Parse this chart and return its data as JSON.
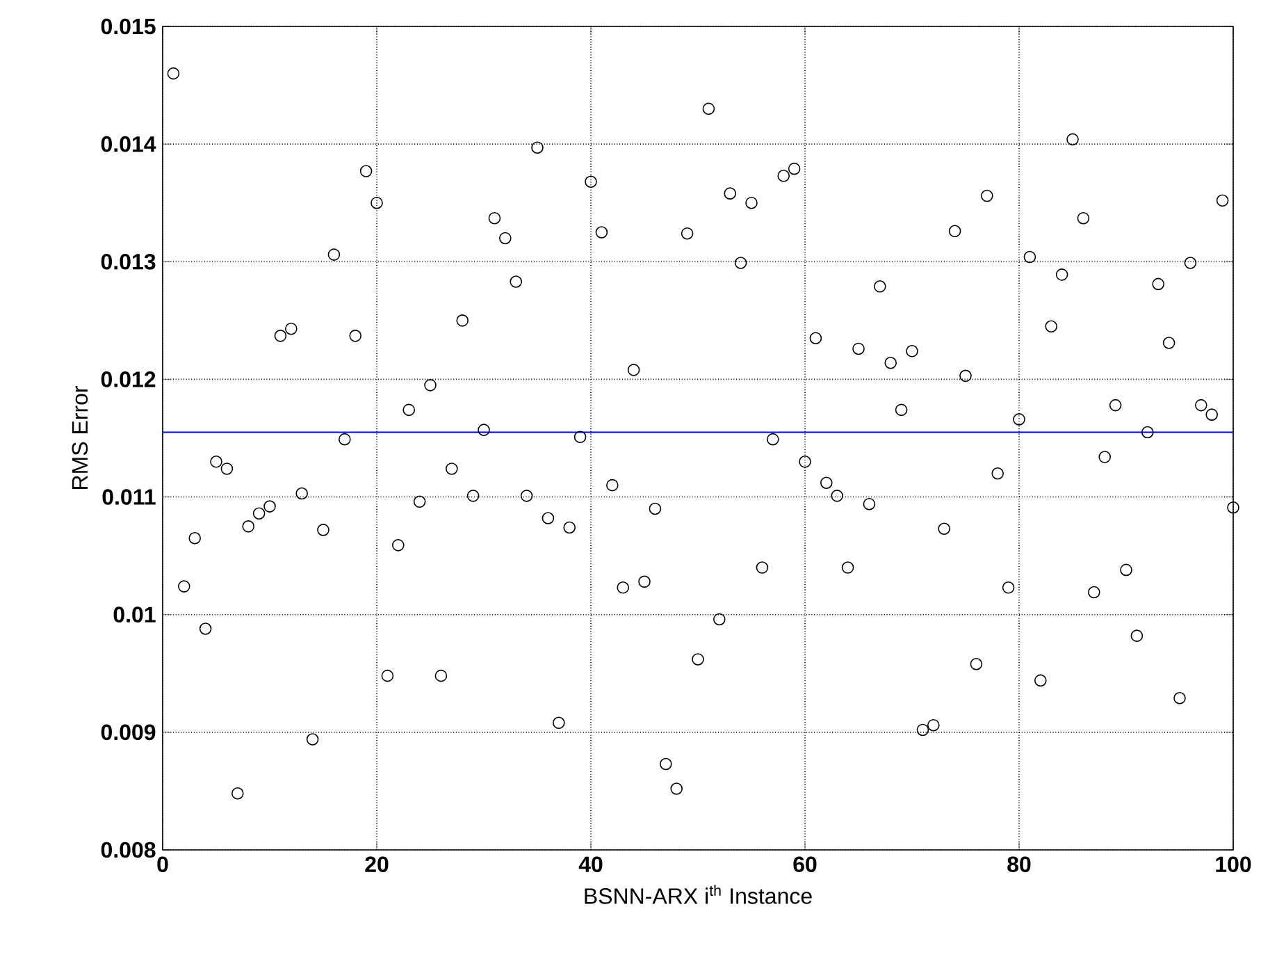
{
  "chart_data": {
    "type": "scatter",
    "xlabel": "BSNN-ARX i$^{th}$ Instance",
    "ylabel": "RMS Error",
    "xlim": [
      0,
      100
    ],
    "xticks": [
      0,
      20,
      40,
      60,
      80,
      100
    ],
    "ylim": [
      0.008,
      0.015
    ],
    "yticks": [
      0.008,
      0.009,
      0.01,
      0.011,
      0.012,
      0.013,
      0.014,
      0.015
    ],
    "grid": true,
    "marker": "circle",
    "x": [
      1,
      2,
      3,
      4,
      5,
      6,
      7,
      8,
      9,
      10,
      11,
      12,
      13,
      14,
      15,
      16,
      17,
      18,
      19,
      20,
      21,
      22,
      23,
      24,
      25,
      26,
      27,
      28,
      29,
      30,
      31,
      32,
      33,
      34,
      35,
      36,
      37,
      38,
      39,
      40,
      41,
      42,
      43,
      44,
      45,
      46,
      47,
      48,
      49,
      50,
      51,
      52,
      53,
      54,
      55,
      56,
      57,
      58,
      59,
      60,
      61,
      62,
      63,
      64,
      65,
      66,
      67,
      68,
      69,
      70,
      71,
      72,
      73,
      74,
      75,
      76,
      77,
      78,
      79,
      80,
      81,
      82,
      83,
      84,
      85,
      86,
      87,
      88,
      89,
      90,
      91,
      92,
      93,
      94,
      95,
      96,
      97,
      98,
      99,
      100
    ],
    "series": [
      {
        "color": "#000000",
        "values": [
          0.0146,
          0.01024,
          0.01065,
          0.00988,
          0.0113,
          0.01124,
          0.00848,
          0.01075,
          0.01086,
          0.01092,
          0.01237,
          0.01243,
          0.01103,
          0.00894,
          0.01072,
          0.01306,
          0.01149,
          0.01237,
          0.01377,
          0.0135,
          0.00948,
          0.01059,
          0.01174,
          0.01096,
          0.01195,
          0.00948,
          0.01124,
          0.0125,
          0.01101,
          0.01157,
          0.01337,
          0.0132,
          0.01283,
          0.01101,
          0.01397,
          0.01082,
          0.00908,
          0.01074,
          0.01151,
          0.01368,
          0.01325,
          0.0111,
          0.01023,
          0.01208,
          0.01028,
          0.0109,
          0.00873,
          0.00852,
          0.01324,
          0.00962,
          0.0143,
          0.00996,
          0.01358,
          0.01299,
          0.0135,
          0.0104,
          0.01149,
          0.01373,
          0.01379,
          0.0113,
          0.01235,
          0.01112,
          0.01101,
          0.0104,
          0.01226,
          0.01094,
          0.01279,
          0.01214,
          0.01174,
          0.01224,
          0.00902,
          0.00906,
          0.01073,
          0.01326,
          0.01203,
          0.00958,
          0.01356,
          0.0112,
          0.01023,
          0.01166,
          0.01304,
          0.00944,
          0.01245,
          0.01289,
          0.01404,
          0.01337,
          0.01019,
          0.01134,
          0.01178,
          0.01038,
          0.00982,
          0.01155,
          0.01281,
          0.01231,
          0.00929,
          0.01299,
          0.01178,
          0.0117,
          0.01352,
          0.01091
        ]
      }
    ],
    "ref_lines": [
      {
        "axis": "y",
        "value": 0.01155,
        "color": "#0000ff"
      }
    ]
  }
}
